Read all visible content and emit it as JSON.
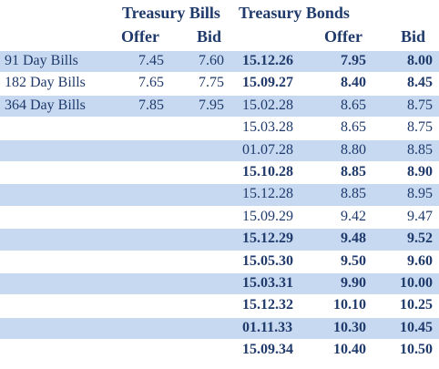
{
  "headers": {
    "bills_title": "Treasury Bills",
    "bonds_title": "Treasury Bonds",
    "bills_offer": "Offer",
    "bills_bid": "Bid",
    "bonds_offer": "Offer",
    "bonds_bid": "Bid"
  },
  "rows": [
    {
      "bill": "91 Day Bills",
      "bill_offer": "7.45",
      "bill_bid": "7.60",
      "date": "15.12.26",
      "offer": "7.95",
      "bid": "8.00",
      "bold": true
    },
    {
      "bill": "182 Day Bills",
      "bill_offer": "7.65",
      "bill_bid": "7.75",
      "date": "15.09.27",
      "offer": "8.40",
      "bid": "8.45",
      "bold": true
    },
    {
      "bill": "364 Day Bills",
      "bill_offer": "7.85",
      "bill_bid": "7.95",
      "date": "15.02.28",
      "offer": "8.65",
      "bid": "8.75",
      "bold": false
    },
    {
      "bill": "",
      "bill_offer": "",
      "bill_bid": "",
      "date": "15.03.28",
      "offer": "8.65",
      "bid": "8.75",
      "bold": false
    },
    {
      "bill": "",
      "bill_offer": "",
      "bill_bid": "",
      "date": "01.07.28",
      "offer": "8.80",
      "bid": "8.85",
      "bold": false
    },
    {
      "bill": "",
      "bill_offer": "",
      "bill_bid": "",
      "date": "15.10.28",
      "offer": "8.85",
      "bid": "8.90",
      "bold": true
    },
    {
      "bill": "",
      "bill_offer": "",
      "bill_bid": "",
      "date": "15.12.28",
      "offer": "8.85",
      "bid": "8.95",
      "bold": false
    },
    {
      "bill": "",
      "bill_offer": "",
      "bill_bid": "",
      "date": "15.09.29",
      "offer": "9.42",
      "bid": "9.47",
      "bold": false
    },
    {
      "bill": "",
      "bill_offer": "",
      "bill_bid": "",
      "date": "15.12.29",
      "offer": "9.48",
      "bid": "9.52",
      "bold": true
    },
    {
      "bill": "",
      "bill_offer": "",
      "bill_bid": "",
      "date": "15.05.30",
      "offer": "9.50",
      "bid": "9.60",
      "bold": true
    },
    {
      "bill": "",
      "bill_offer": "",
      "bill_bid": "",
      "date": "15.03.31",
      "offer": "9.90",
      "bid": "10.00",
      "bold": true
    },
    {
      "bill": "",
      "bill_offer": "",
      "bill_bid": "",
      "date": "15.12.32",
      "offer": "10.10",
      "bid": "10.25",
      "bold": true
    },
    {
      "bill": "",
      "bill_offer": "",
      "bill_bid": "",
      "date": "01.11.33",
      "offer": "10.30",
      "bid": "10.45",
      "bold": true
    },
    {
      "bill": "",
      "bill_offer": "",
      "bill_bid": "",
      "date": "15.09.34",
      "offer": "10.40",
      "bid": "10.50",
      "bold": true
    }
  ]
}
